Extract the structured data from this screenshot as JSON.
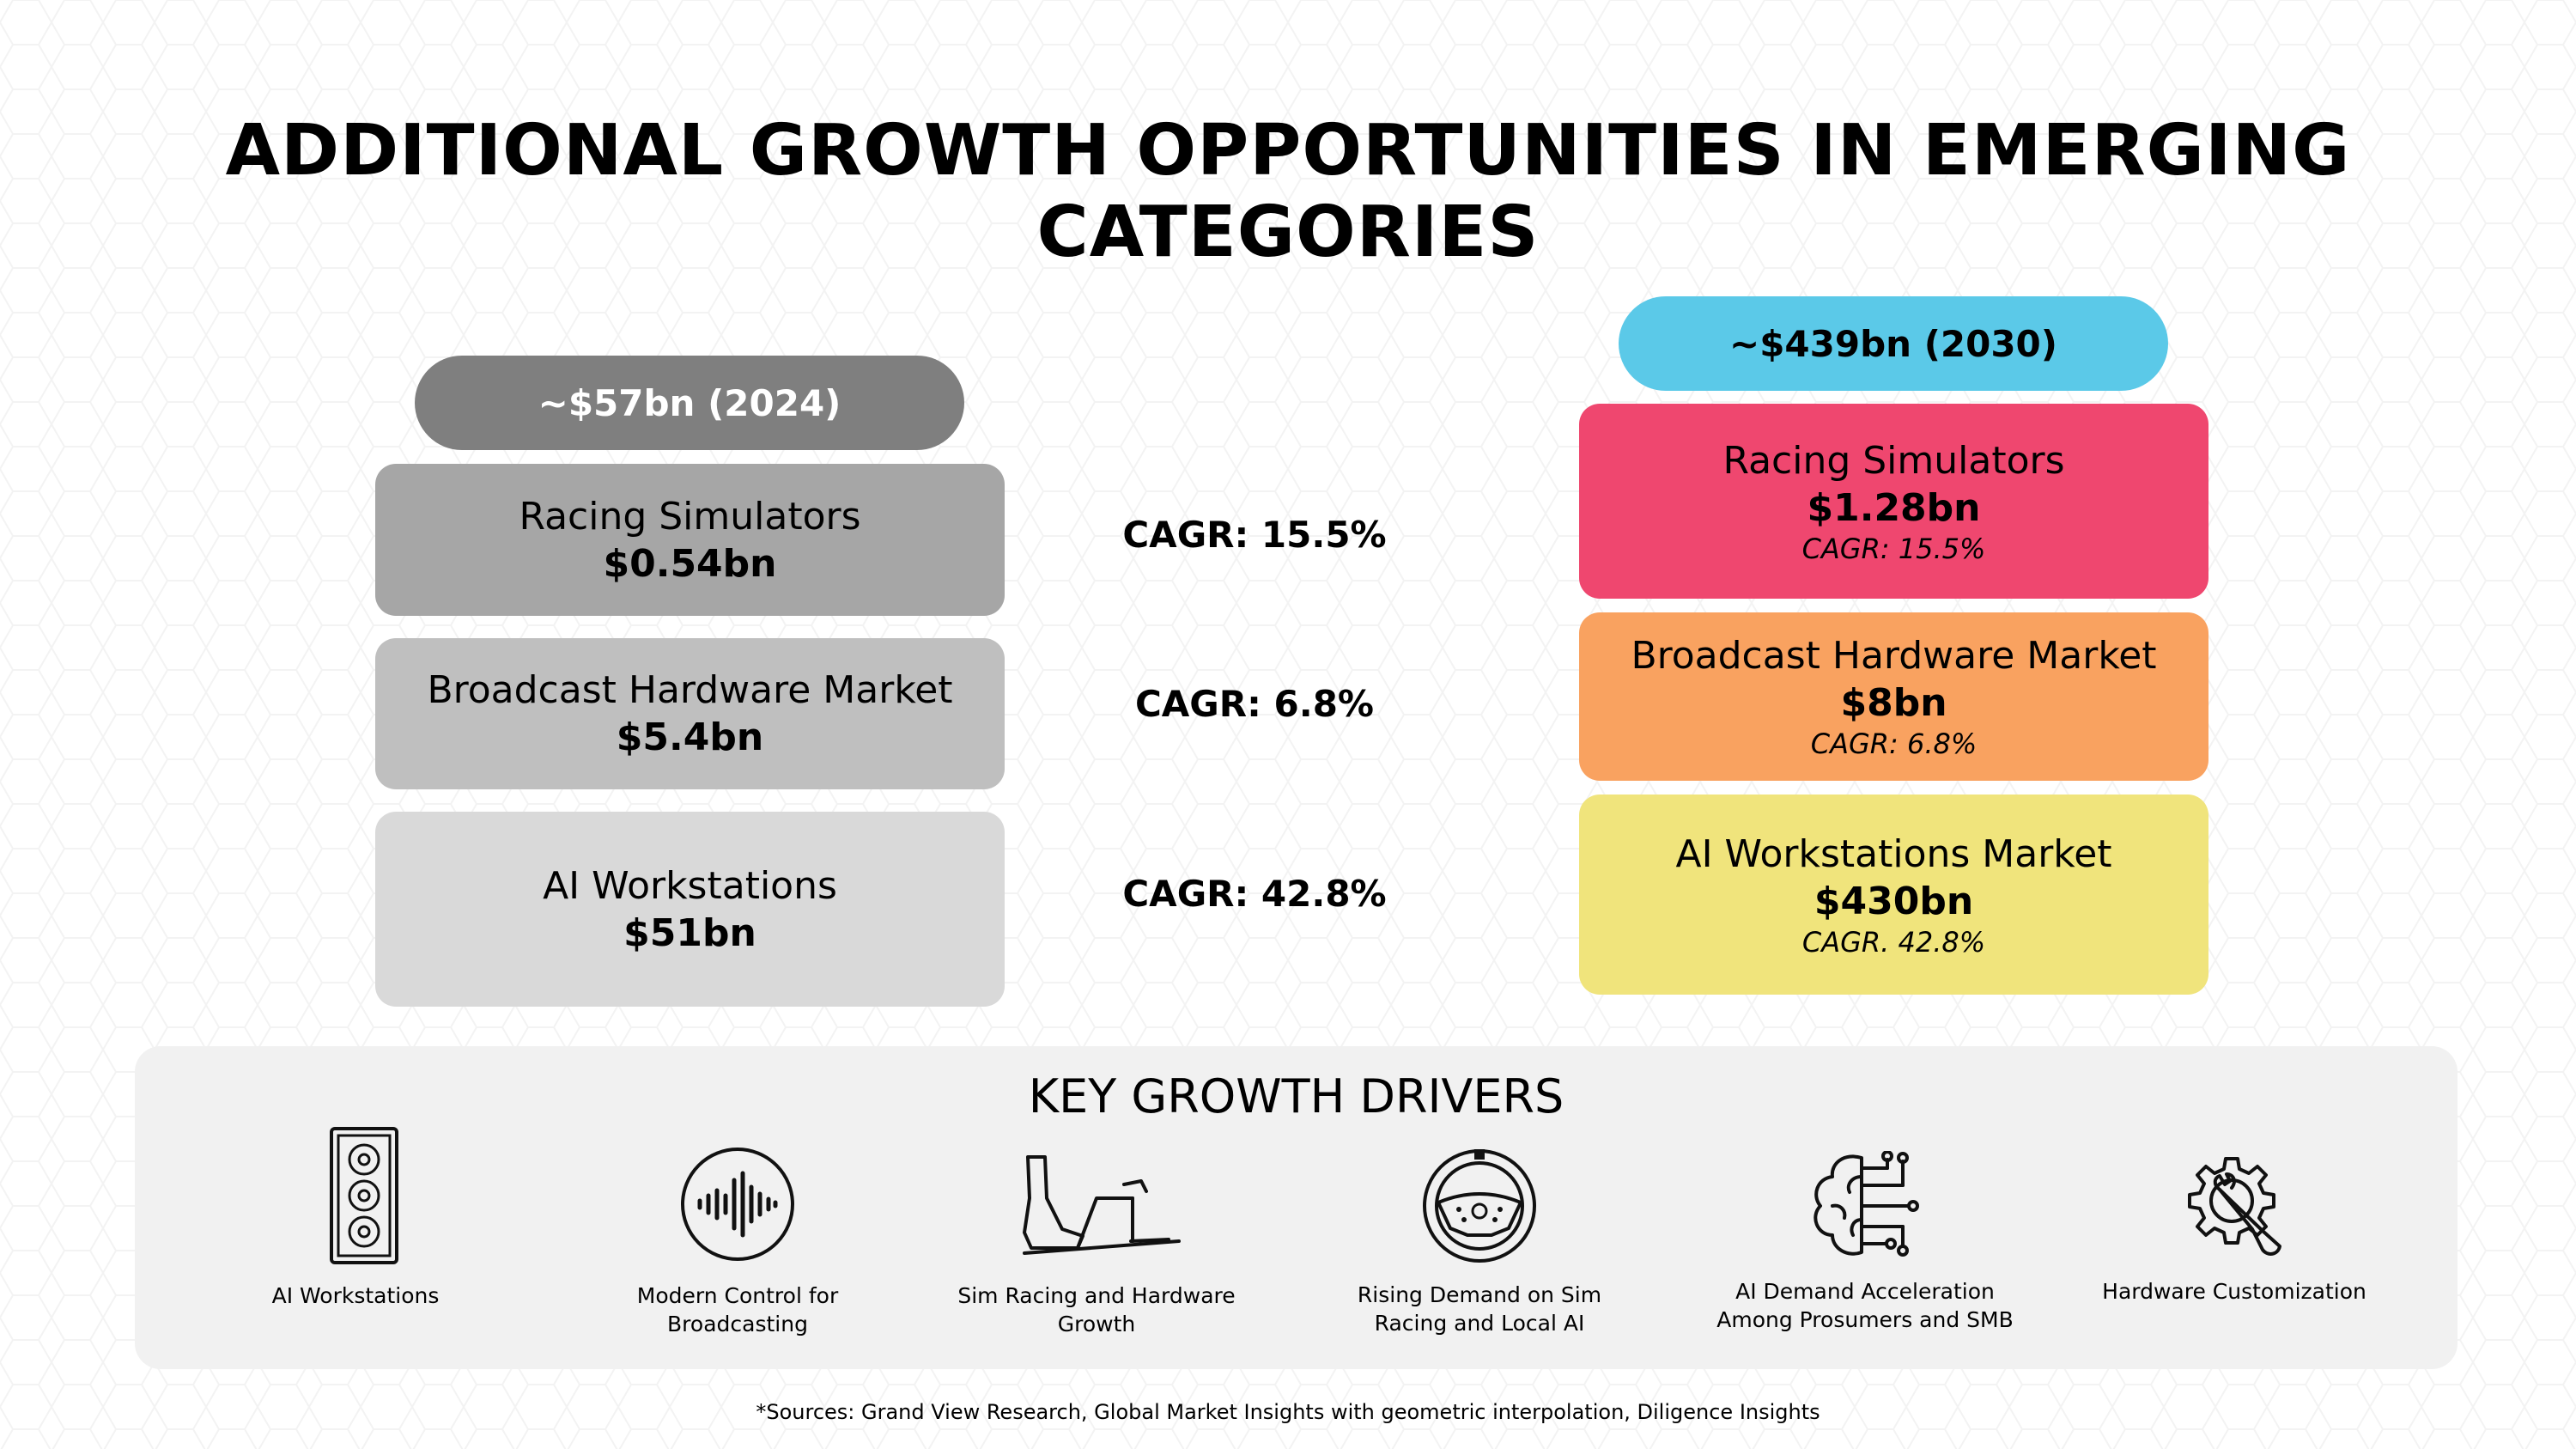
{
  "title": "ADDITIONAL GROWTH OPPORTUNITIES IN EMERGING CATEGORIES",
  "left": {
    "pill": "~$57bn (2024)",
    "items": [
      {
        "name": "Racing Simulators",
        "value": "$0.54bn"
      },
      {
        "name": "Broadcast Hardware Market",
        "value": "$5.4bn"
      },
      {
        "name": "AI Workstations",
        "value": "$51bn"
      }
    ]
  },
  "middle": {
    "cagrs": [
      "CAGR: 15.5%",
      "CAGR: 6.8%",
      "CAGR: 42.8%"
    ]
  },
  "right": {
    "pill": "~$439bn (2030)",
    "items": [
      {
        "name": "Racing Simulators",
        "value": "$1.28bn",
        "cagr": "CAGR: 15.5%"
      },
      {
        "name": "Broadcast Hardware Market",
        "value": "$8bn",
        "cagr": "CAGR: 6.8%"
      },
      {
        "name": "AI Workstations Market",
        "value": "$430bn",
        "cagr": "CAGR. 42.8%"
      }
    ]
  },
  "drivers": {
    "title": "KEY GROWTH DRIVERS",
    "items": [
      {
        "icon": "pc-tower-icon",
        "label": "AI Workstations"
      },
      {
        "icon": "sound-wave-icon",
        "label": "Modern Control for Broadcasting"
      },
      {
        "icon": "racing-seat-icon",
        "label": "Sim Racing and Hardware Growth"
      },
      {
        "icon": "steering-wheel-icon",
        "label": "Rising Demand on Sim Racing and Local AI"
      },
      {
        "icon": "ai-brain-icon",
        "label": "AI Demand Acceleration Among Prosumers and SMB"
      },
      {
        "icon": "gear-wrench-icon",
        "label": "Hardware Customization"
      }
    ]
  },
  "footnote": "*Sources: Grand View Research, Global Market Insights with geometric interpolation, Diligence Insights",
  "colors": {
    "pill_2024": "#7f7f7f",
    "pill_2030": "#5bc9e8",
    "racing_2030": "#ef476f",
    "broadcast_2030": "#f9a260",
    "ai_2030": "#f0e47c"
  }
}
